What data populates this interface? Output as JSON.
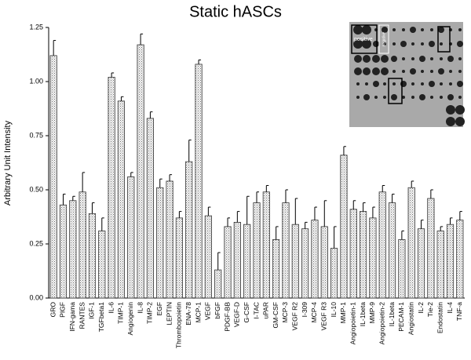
{
  "chart_data": {
    "type": "bar",
    "title": "Static hASCs",
    "y_label": "Arbitrary Unit Intensity",
    "categories": [
      "GRO",
      "PIGF",
      "IFN-gama",
      "RANTES",
      "IGF-1",
      "TGFbeta1",
      "IL-6",
      "TIMP-1",
      "Angiogenin",
      "IL-8",
      "TIMP-2",
      "EGF",
      "LEPTIN",
      "Thrombopoietin",
      "ENA-78",
      "MCP-1",
      "VEGF",
      "bFGF",
      "PDGF-BB",
      "VEGF-D",
      "G-CSF",
      "I-TAC",
      "uPAR",
      "GM-CSF",
      "MCP-3",
      "VEGF R2",
      "I-309",
      "MCP-4",
      "VEGF R3",
      "IL-10",
      "MMP-1",
      "Angiopoietin-1",
      "IL-1beta",
      "MMP-9",
      "Angiopoietin-2",
      "IL-1beta",
      "PECAM-1",
      "Angiostatin",
      "IL-2",
      "Tie-2",
      "Endostatin",
      "IL-4",
      "TNF-a"
    ],
    "values": [
      1.12,
      0.43,
      0.45,
      0.49,
      0.39,
      0.31,
      1.02,
      0.91,
      0.56,
      1.17,
      0.83,
      0.51,
      0.54,
      0.37,
      0.63,
      1.08,
      0.38,
      0.13,
      0.33,
      0.35,
      0.34,
      0.44,
      0.49,
      0.27,
      0.44,
      0.34,
      0.32,
      0.36,
      0.33,
      0.23,
      0.66,
      0.41,
      0.4,
      0.37,
      0.49,
      0.44,
      0.27,
      0.51,
      0.32,
      0.46,
      0.31,
      0.34,
      0.36
    ],
    "errors": [
      0.07,
      0.05,
      0.02,
      0.09,
      0.05,
      0.06,
      0.02,
      0.02,
      0.02,
      0.05,
      0.03,
      0.04,
      0.03,
      0.03,
      0.1,
      0.02,
      0.04,
      0.08,
      0.04,
      0.05,
      0.13,
      0.05,
      0.03,
      0.06,
      0.06,
      0.12,
      0.03,
      0.06,
      0.12,
      0.1,
      0.04,
      0.04,
      0.04,
      0.05,
      0.03,
      0.04,
      0.04,
      0.03,
      0.04,
      0.04,
      0.02,
      0.03,
      0.04
    ],
    "ylim": [
      0,
      1.25
    ],
    "yticks": [
      {
        "value": 0,
        "label": "0.00"
      },
      {
        "value": 0.25,
        "label": "0.25"
      },
      {
        "value": 0.5,
        "label": "0.50"
      },
      {
        "value": 0.75,
        "label": "0.75"
      },
      {
        "value": 1,
        "label": "1.00"
      },
      {
        "value": 1.25,
        "label": "1.25"
      }
    ],
    "inset_labels": [
      "positive",
      "negative"
    ]
  }
}
